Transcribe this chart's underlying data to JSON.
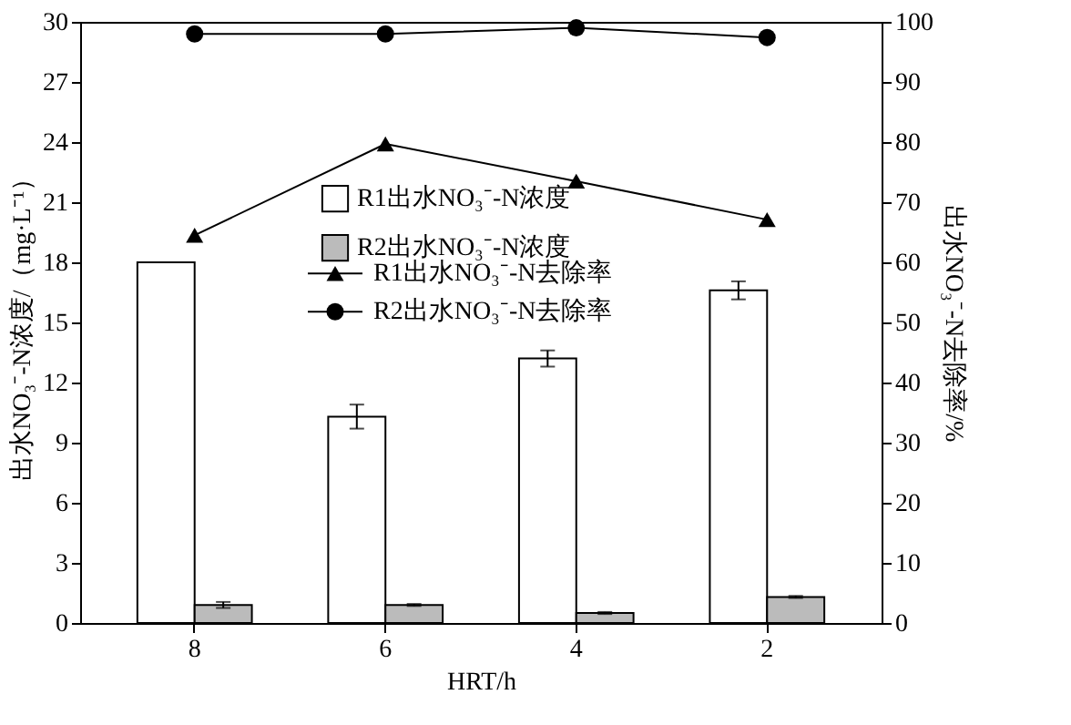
{
  "chart_data": {
    "type": "bar",
    "xlabel": "HRT/h",
    "ylabel": "出水NO₃⁻-N浓度/（mg·L⁻¹）",
    "y2label": "出水NO₃⁻-N去除率/%",
    "categories": [
      "8",
      "6",
      "4",
      "2"
    ],
    "ylim": [
      0,
      30
    ],
    "yticks": [
      0,
      3,
      6,
      9,
      12,
      15,
      18,
      21,
      24,
      27,
      30
    ],
    "y2lim": [
      0,
      100
    ],
    "y2ticks": [
      0,
      10,
      20,
      30,
      40,
      50,
      60,
      70,
      80,
      90,
      100
    ],
    "grid": false,
    "legend": "top",
    "series": [
      {
        "name": "R1出水NO₃⁻-N浓度",
        "color": "#ffffff",
        "values": [
          18.0,
          10.3,
          13.2,
          16.6
        ],
        "errors": [
          null,
          0.6,
          0.4,
          0.45
        ]
      },
      {
        "name": "R2出水NO₃⁻-N浓度",
        "color": "#bbbbbb",
        "values": [
          0.9,
          0.9,
          0.5,
          1.3
        ],
        "errors": [
          0.15,
          0.05,
          0.05,
          0.05
        ]
      },
      {
        "name": "R1出水NO₃⁻-N去除率",
        "type": "line",
        "axis": "y2",
        "color": "#000000",
        "marker": "triangle",
        "values": [
          64.5,
          79.7,
          73.5,
          67.1
        ]
      },
      {
        "name": "R2出水NO₃⁻-N去除率",
        "type": "line",
        "axis": "y2",
        "color": "#000000",
        "marker": "circle",
        "values": [
          98.0,
          98.0,
          99.0,
          97.4
        ]
      }
    ]
  }
}
